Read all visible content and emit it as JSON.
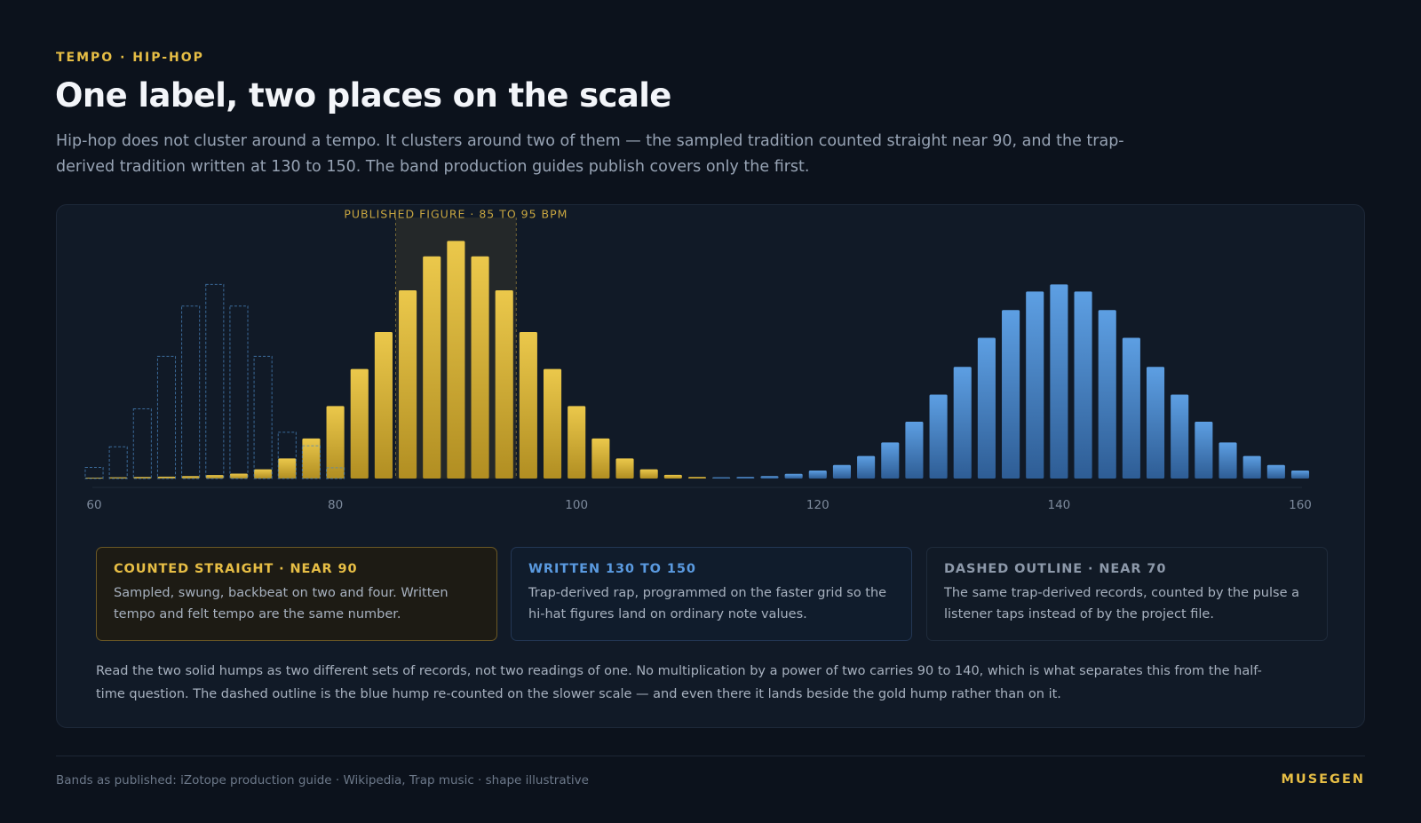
{
  "header": {
    "eyebrow": "TEMPO · HIP-HOP",
    "title": "One label, two places on the scale",
    "subtitle": "Hip-hop does not cluster around a tempo. It clusters around two of them — the sampled tradition counted straight near 90, and the trap-derived tradition written at 130 to 150. The band production guides publish covers only the first."
  },
  "chart_data": {
    "type": "bar",
    "xlim": [
      60,
      160
    ],
    "x_ticks": [
      60,
      80,
      100,
      120,
      140,
      160
    ],
    "bin_width": 2,
    "annotation": {
      "label": "PUBLISHED FIGURE · 85 TO 95 BPM",
      "range": [
        85,
        95
      ]
    },
    "series": [
      {
        "style": "solid",
        "color": "#e7be45",
        "x": [
          60,
          62,
          64,
          66,
          68,
          70,
          72,
          74,
          76,
          78,
          80,
          82,
          84,
          86,
          88,
          90,
          92,
          94,
          96,
          98,
          100,
          102,
          104,
          106,
          108,
          110,
          112
        ],
        "values": [
          0.3,
          0.4,
          0.5,
          0.6,
          0.8,
          1.1,
          1.6,
          3.0,
          6.5,
          13,
          23.5,
          35.5,
          47.5,
          61,
          72,
          77,
          72,
          61,
          47.5,
          35.5,
          23.5,
          13,
          6.5,
          3.0,
          1.2,
          0.5,
          0.3
        ]
      },
      {
        "style": "solid",
        "color": "#5a9ae0",
        "x": [
          112,
          114,
          116,
          118,
          120,
          122,
          124,
          126,
          128,
          130,
          132,
          134,
          136,
          138,
          140,
          142,
          144,
          146,
          148,
          150,
          152,
          154,
          156,
          158,
          160
        ],
        "values": [
          0.4,
          0.5,
          0.8,
          1.5,
          2.6,
          4.4,
          7.3,
          11.7,
          18.4,
          27.2,
          36.2,
          45.6,
          54.6,
          60.6,
          62.9,
          60.6,
          54.6,
          45.6,
          36.2,
          27.2,
          18.4,
          11.7,
          7.3,
          4.4,
          2.6
        ]
      },
      {
        "style": "dashed",
        "color": "#4a86c0",
        "x": [
          60,
          62,
          64,
          66,
          68,
          70,
          72,
          74,
          76,
          78,
          80
        ],
        "values": [
          3.6,
          10.3,
          22.6,
          39.6,
          55.9,
          62.9,
          55.9,
          39.6,
          15.0,
          10.6,
          3.5
        ]
      }
    ]
  },
  "legend": {
    "cards": [
      {
        "title": "COUNTED STRAIGHT · NEAR 90",
        "body": "Sampled, swung, backbeat on two and four. Written tempo and felt tempo are the same number."
      },
      {
        "title": "WRITTEN 130 TO 150",
        "body": "Trap-derived rap, programmed on the faster grid so the hi-hat figures land on ordinary note values."
      },
      {
        "title": "DASHED OUTLINE · NEAR 70",
        "body": "The same trap-derived records, counted by the pulse a listener taps instead of by the project file."
      }
    ]
  },
  "note": "Read the two solid humps as two different sets of records, not two readings of one. No multiplication by a power of two carries 90 to 140, which is what separates this from the half-time question. The dashed outline is the blue hump re-counted on the slower scale — and even there it lands beside the gold hump rather than on it.",
  "footer": {
    "source": "Bands as published: iZotope production guide · Wikipedia, Trap music · shape illustrative",
    "brand": "MUSEGEN"
  }
}
